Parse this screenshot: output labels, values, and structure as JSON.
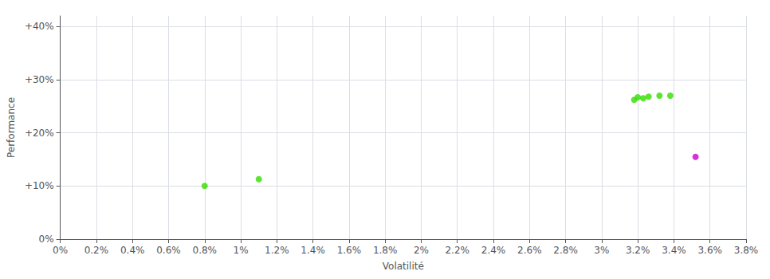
{
  "chart_data": {
    "type": "scatter",
    "xlabel": "Volatilité",
    "ylabel": "Performance",
    "xlim": [
      0.0,
      0.038
    ],
    "ylim": [
      0.0,
      0.42
    ],
    "xticks": [
      {
        "value": 0.0,
        "label": "0%"
      },
      {
        "value": 0.002,
        "label": "0.2%"
      },
      {
        "value": 0.004,
        "label": "0.4%"
      },
      {
        "value": 0.006,
        "label": "0.6%"
      },
      {
        "value": 0.008,
        "label": "0.8%"
      },
      {
        "value": 0.01,
        "label": "1%"
      },
      {
        "value": 0.012,
        "label": "1.2%"
      },
      {
        "value": 0.014,
        "label": "1.4%"
      },
      {
        "value": 0.016,
        "label": "1.6%"
      },
      {
        "value": 0.018,
        "label": "1.8%"
      },
      {
        "value": 0.02,
        "label": "2%"
      },
      {
        "value": 0.022,
        "label": "2.2%"
      },
      {
        "value": 0.024,
        "label": "2.4%"
      },
      {
        "value": 0.026,
        "label": "2.6%"
      },
      {
        "value": 0.028,
        "label": "2.8%"
      },
      {
        "value": 0.03,
        "label": "3%"
      },
      {
        "value": 0.032,
        "label": "3.2%"
      },
      {
        "value": 0.034,
        "label": "3.4%"
      },
      {
        "value": 0.036,
        "label": "3.6%"
      },
      {
        "value": 0.038,
        "label": "3.8%"
      }
    ],
    "yticks": [
      {
        "value": 0.0,
        "label": "0%"
      },
      {
        "value": 0.1,
        "label": "+10%"
      },
      {
        "value": 0.2,
        "label": "+20%"
      },
      {
        "value": 0.3,
        "label": "+30%"
      },
      {
        "value": 0.4,
        "label": "+40%"
      }
    ],
    "grid": true,
    "series": [
      {
        "color": "#33dd00",
        "x": [
          0.008,
          0.011,
          0.0318,
          0.032,
          0.0323,
          0.0326,
          0.0332,
          0.0338
        ],
        "values": [
          0.1,
          0.113,
          0.262,
          0.267,
          0.265,
          0.268,
          0.27,
          0.27
        ]
      },
      {
        "color": "#cc00cc",
        "x": [
          0.0352
        ],
        "values": [
          0.155
        ]
      }
    ]
  }
}
